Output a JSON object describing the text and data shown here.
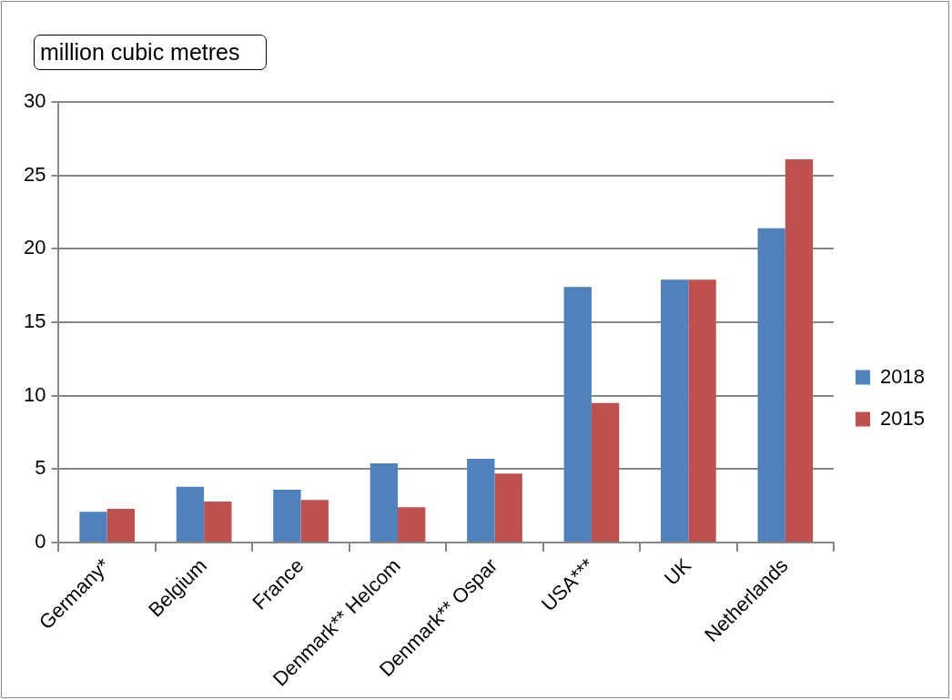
{
  "chart_data": {
    "type": "bar",
    "title": "million cubic metres",
    "categories": [
      "Germany*",
      "Belgium",
      "France",
      "Denmark** Helcom",
      "Denmark** Ospar",
      "USA***",
      "UK",
      "Netherlands"
    ],
    "series": [
      {
        "name": "2018",
        "color": "#4f81bd",
        "values": [
          2.1,
          3.8,
          3.6,
          5.4,
          5.7,
          17.4,
          17.9,
          21.4
        ]
      },
      {
        "name": "2015",
        "color": "#c0504d",
        "values": [
          2.3,
          2.8,
          2.9,
          2.4,
          4.7,
          9.5,
          17.9,
          26.1
        ]
      }
    ],
    "ylim": [
      0,
      30
    ],
    "yticks": [
      0,
      5,
      10,
      15,
      20,
      25,
      30
    ],
    "grid": "y",
    "legend": "right"
  }
}
